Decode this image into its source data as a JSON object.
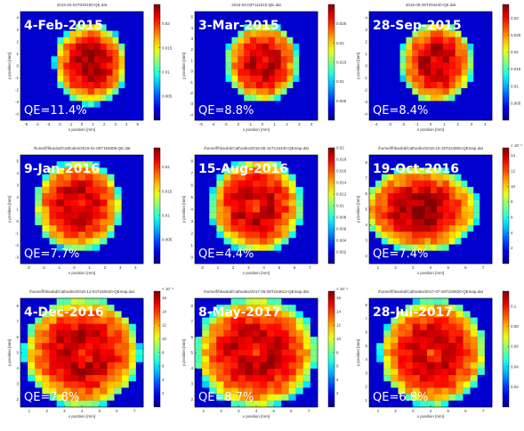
{
  "chart_data": [
    {
      "type": "heatmap",
      "date_label": "4-Feb-2015",
      "qe_label": "QE=11.4%",
      "filename": "2015-02-04T020150-QE.dat",
      "xlabel": "x position [mm]",
      "ylabel": "y position [mm]",
      "x_ticks": [
        "-5",
        "-4",
        "-3",
        "-2",
        "-1",
        "0",
        "1",
        "2",
        "3",
        "4",
        "5"
      ],
      "y_ticks": [
        "-4",
        "-3",
        "-2",
        "-1",
        "0",
        "1",
        "2",
        "3",
        "4"
      ],
      "colorbar_ticks": [
        "0.005",
        "0.01",
        "0.015",
        "0.02"
      ],
      "colorbar_range": [
        0,
        0.024
      ],
      "grid_cols": 20,
      "grid_rows": 17,
      "spot_center": [
        0.57,
        0.48
      ],
      "spot_radius": [
        0.3,
        0.38
      ],
      "peak_value": 0.022,
      "ring_dip": false
    },
    {
      "type": "heatmap",
      "date_label": "3-Mar-2015",
      "qe_label": "QE=8.8%",
      "filename": "2015-03-03T111510-QE.dat",
      "xlabel": "x position [mm]",
      "ylabel": "y position [mm]",
      "x_ticks": [
        "-5",
        "-4",
        "-3",
        "-2",
        "-1",
        "0",
        "1",
        "2",
        "3",
        "4"
      ],
      "y_ticks": [
        "-4",
        "-3",
        "-2",
        "-1",
        "0",
        "1",
        "2",
        "3",
        "4",
        "5"
      ],
      "colorbar_ticks": [
        "0.005",
        "0.01",
        "0.015",
        "0.02",
        "0.025"
      ],
      "colorbar_range": [
        0,
        0.03
      ],
      "grid_cols": 20,
      "grid_rows": 17,
      "spot_center": [
        0.55,
        0.47
      ],
      "spot_radius": [
        0.3,
        0.37
      ],
      "peak_value": 0.027,
      "ring_dip": true
    },
    {
      "type": "heatmap",
      "date_label": "28-Sep-2015",
      "qe_label": "QE=8.4%",
      "filename": "2015-09-28T204440-QE.dat",
      "xlabel": "x position [mm]",
      "ylabel": "y position [mm]",
      "x_ticks": [
        "-4",
        "-3",
        "-2",
        "-1",
        "0",
        "1",
        "2",
        "3",
        "4"
      ],
      "y_ticks": [
        "-4",
        "-3",
        "-2",
        "-1",
        "0",
        "1",
        "2",
        "3",
        "4"
      ],
      "colorbar_ticks": [
        "0.005",
        "0.01",
        "0.015",
        "0.02",
        "0.025",
        "0.03"
      ],
      "colorbar_range": [
        0,
        0.034
      ],
      "grid_cols": 20,
      "grid_rows": 17,
      "spot_center": [
        0.55,
        0.47
      ],
      "spot_radius": [
        0.3,
        0.38
      ],
      "peak_value": 0.03,
      "ring_dip": true
    },
    {
      "type": "heatmap",
      "date_label": "9-Jan-2016",
      "qe_label": "QE=7.7%",
      "filename": "/home/f/hkaobd/Cathodes/2016-01-09T194909-QE.dat",
      "xlabel": "x position [mm]",
      "ylabel": "y position [mm]",
      "x_ticks": [
        "-3",
        "-2",
        "-1",
        "0",
        "1",
        "2",
        "3",
        "4"
      ],
      "y_ticks": [
        "-3",
        "-2",
        "-1",
        "0",
        "1",
        "2",
        "3",
        "4",
        "5"
      ],
      "colorbar_ticks": [
        "0.005",
        "0.01",
        "0.015",
        "0.02"
      ],
      "colorbar_range": [
        0,
        0.024
      ],
      "grid_cols": 17,
      "grid_rows": 17,
      "spot_center": [
        0.47,
        0.47
      ],
      "spot_radius": [
        0.36,
        0.42
      ],
      "peak_value": 0.021,
      "ring_dip": true
    },
    {
      "type": "heatmap",
      "date_label": "15-Aug-2016",
      "qe_label": "QE=4.4%",
      "filename": "/home/f/hkaobd/Cathodes/2016-08-15T134440-QEmap.dat",
      "xlabel": "x position [mm]",
      "ylabel": "y position [mm]",
      "x_ticks": [
        "0",
        "1",
        "2",
        "3",
        "4",
        "5",
        "6",
        "7"
      ],
      "y_ticks": [
        "0",
        "1",
        "2",
        "3",
        "4",
        "5",
        "6",
        "7",
        "8"
      ],
      "colorbar_ticks": [
        "0.002",
        "0.004",
        "0.006",
        "0.008",
        "0.01",
        "0.012",
        "0.014",
        "0.016",
        "0.018",
        "0.02"
      ],
      "colorbar_range": [
        0,
        0.02
      ],
      "grid_cols": 17,
      "grid_rows": 17,
      "spot_center": [
        0.5,
        0.47
      ],
      "spot_radius": [
        0.38,
        0.44
      ],
      "peak_value": 0.018,
      "ring_dip": true
    },
    {
      "type": "heatmap",
      "date_label": "19-Oct-2016",
      "qe_label": "QE=7.4%",
      "filename": "/home/f/hkaobd/Cathodes/2016-10-19T224800-QEmap.dat",
      "xlabel": "x position [mm]",
      "ylabel": "y position [mm]",
      "x_ticks": [
        "1",
        "2",
        "3",
        "4",
        "5",
        "6",
        "7"
      ],
      "y_ticks": [
        "2",
        "3",
        "4",
        "5",
        "6",
        "7",
        "8"
      ],
      "colorbar_ticks": [
        "2",
        "4",
        "6",
        "8",
        "10",
        "12",
        "14"
      ],
      "colorbar_multiplier": "× 10⁻³",
      "colorbar_range": [
        0,
        15
      ],
      "grid_cols": 20,
      "grid_rows": 17,
      "spot_center": [
        0.42,
        0.5
      ],
      "spot_radius": [
        0.48,
        0.4
      ],
      "peak_value": 13,
      "ring_dip": false
    },
    {
      "type": "heatmap",
      "date_label": "4-Dec-2016",
      "qe_label": "QE=7.8%",
      "filename": "/home/f/hkaobd/Cathodes/2016-12-04T150620-QEmap.dat",
      "xlabel": "x position [mm]",
      "ylabel": "y position [mm]",
      "x_ticks": [
        "1",
        "2",
        "3",
        "4",
        "5",
        "6",
        "7"
      ],
      "y_ticks": [
        "2",
        "3",
        "4",
        "5",
        "6",
        "7",
        "8"
      ],
      "colorbar_ticks": [
        "2",
        "4",
        "6",
        "8",
        "10",
        "12",
        "14",
        "16"
      ],
      "colorbar_multiplier": "× 10⁻³",
      "colorbar_range": [
        0,
        17
      ],
      "grid_cols": 17,
      "grid_rows": 17,
      "spot_center": [
        0.5,
        0.5
      ],
      "spot_radius": [
        0.48,
        0.52
      ],
      "peak_value": 15,
      "ring_dip": true
    },
    {
      "type": "heatmap",
      "date_label": "8-May-2017",
      "qe_label": "QE=8.7%",
      "filename": "/home/f/hkaobd/Cathodes/2017-05-08T164813-QEmap.dat",
      "xlabel": "x position [mm]",
      "ylabel": "y position [mm]",
      "x_ticks": [
        "1",
        "2",
        "3",
        "4",
        "5",
        "6",
        "7"
      ],
      "y_ticks": [
        "2",
        "3",
        "4",
        "5",
        "6",
        "7",
        "8"
      ],
      "colorbar_ticks": [
        "2",
        "4",
        "6",
        "8",
        "10",
        "12",
        "14",
        "16"
      ],
      "colorbar_multiplier": "× 10⁻³",
      "colorbar_range": [
        0,
        17
      ],
      "grid_cols": 17,
      "grid_rows": 17,
      "spot_center": [
        0.5,
        0.5
      ],
      "spot_radius": [
        0.5,
        0.52
      ],
      "peak_value": 15,
      "ring_dip": true
    },
    {
      "type": "heatmap",
      "date_label": "28-Jul-2017",
      "qe_label": "QE=6.8%",
      "filename": "/home/f/hkaobd/Cathodes/2017-07-28T150820-QEmap.dat",
      "xlabel": "x position [mm]",
      "ylabel": "y position [mm]",
      "x_ticks": [
        "1",
        "2",
        "3",
        "4",
        "5",
        "6",
        "7"
      ],
      "y_ticks": [
        "1",
        "2",
        "3",
        "4",
        "5",
        "6",
        "7",
        "8"
      ],
      "colorbar_ticks": [
        "0.02",
        "0.04",
        "0.06",
        "0.08",
        "0.1"
      ],
      "colorbar_range": [
        0,
        0.115
      ],
      "grid_cols": 17,
      "grid_rows": 17,
      "spot_center": [
        0.52,
        0.5
      ],
      "spot_radius": [
        0.44,
        0.5
      ],
      "peak_value": 0.105,
      "ring_dip": true
    }
  ]
}
